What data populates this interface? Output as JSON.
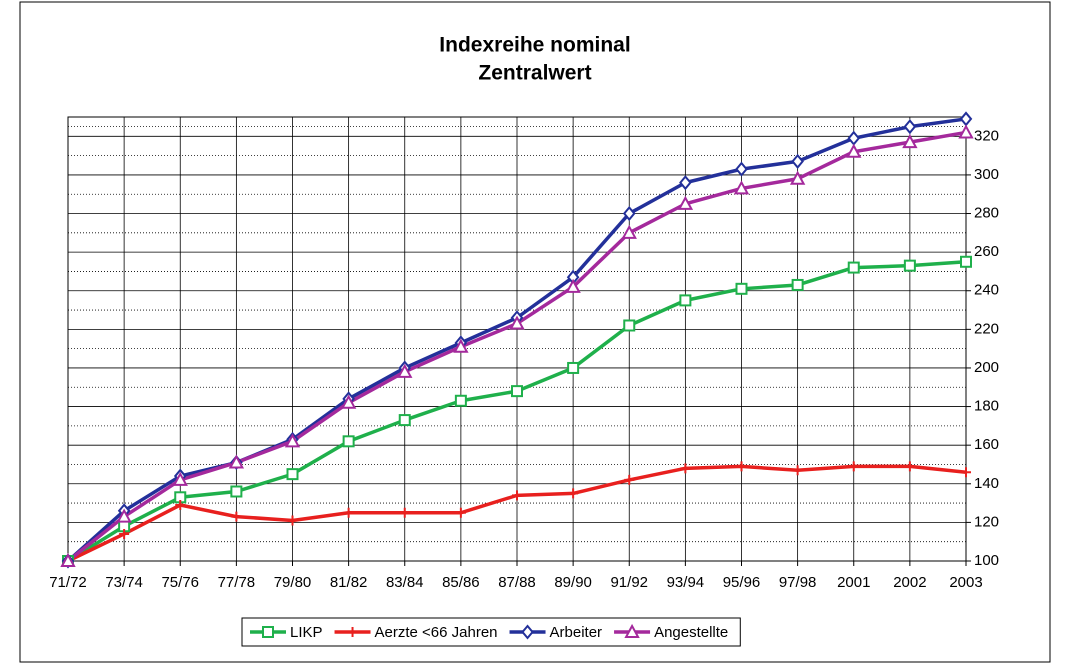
{
  "chart_data": {
    "type": "line",
    "title": [
      "Indexreihe nominal",
      "Zentralwert"
    ],
    "categories": [
      "71/72",
      "73/74",
      "75/76",
      "77/78",
      "79/80",
      "81/82",
      "83/84",
      "85/86",
      "87/88",
      "89/90",
      "91/92",
      "93/94",
      "95/96",
      "97/98",
      "2001",
      "2002",
      "2003"
    ],
    "series": [
      {
        "name": "LIKP",
        "color": "#1fb04b",
        "marker": "square",
        "values": [
          100,
          118,
          133,
          136,
          145,
          162,
          173,
          183,
          188,
          200,
          222,
          235,
          241,
          243,
          252,
          253,
          255
        ]
      },
      {
        "name": "Aerzte <66 Jahren",
        "color": "#e8201e",
        "marker": "plus",
        "values": [
          100,
          114,
          129,
          123,
          121,
          125,
          125,
          125,
          134,
          135,
          142,
          148,
          149,
          147,
          149,
          149,
          146
        ]
      },
      {
        "name": "Arbeiter",
        "color": "#23309a",
        "marker": "diamond",
        "values": [
          100,
          126,
          144,
          151,
          163,
          184,
          200,
          213,
          226,
          247,
          280,
          296,
          303,
          307,
          319,
          325,
          329
        ]
      },
      {
        "name": "Angestellte",
        "color": "#a4299c",
        "marker": "triangle",
        "values": [
          100,
          123,
          142,
          151,
          162,
          182,
          198,
          211,
          223,
          242,
          270,
          285,
          293,
          298,
          312,
          317,
          322
        ]
      }
    ],
    "ylim": [
      100,
      330
    ],
    "yticks": [
      100,
      120,
      140,
      160,
      180,
      200,
      220,
      240,
      260,
      280,
      300,
      320
    ],
    "grid": true,
    "legend": "bottom"
  }
}
